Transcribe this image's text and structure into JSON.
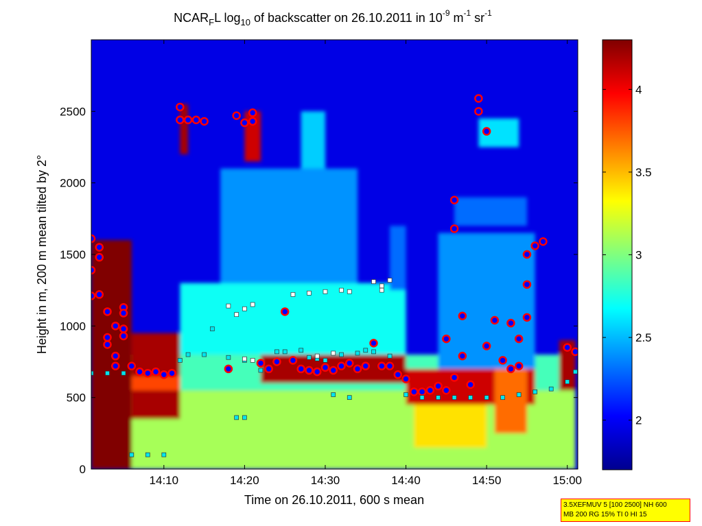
{
  "title": {
    "prefix": "NCAR",
    "sub_f": "F",
    "mid1": "L log",
    "sub_10": "10",
    "mid2": " of backscatter on 26.10.2011 in 10",
    "sup_exp": "-9",
    "unit_m": " m",
    "sup_m": "-1",
    "unit_sr": " sr",
    "sup_sr": "-1"
  },
  "info_box": {
    "line1": "3.5XEFMUV 5 [100 2500] NH 600",
    "line2": "MB 200 RG 15% TI 0 HI 15"
  },
  "colors": {
    "accent_box_fill": "#ffff00",
    "accent_box_border": "#ff0000",
    "marker_fill_blue": "#0000ff",
    "marker_edge_red": "#ff0000",
    "marker_cyan": "#00e5ee",
    "colormap": "jet"
  },
  "chart_data": {
    "type": "heatmap",
    "colormap": "jet",
    "xlabel": "Time on 26.10.2011, 600 s mean",
    "ylabel": "Height in m, 200 m mean tilted by 2°",
    "x_ticks": [
      "14:10",
      "14:20",
      "14:30",
      "14:40",
      "14:50",
      "15:00"
    ],
    "y_ticks": [
      "0",
      "500",
      "1000",
      "1500",
      "2000",
      "2500"
    ],
    "ylim": [
      0,
      3000
    ],
    "colorbar_ticks": [
      "2",
      "2.5",
      "3",
      "3.5",
      "4"
    ],
    "colorbar_range": [
      1.7,
      4.3
    ],
    "grid": false,
    "background_value": 1.95,
    "regions": [
      {
        "t0": "14:01",
        "t1": "15:01",
        "z0": 0,
        "z1": 550,
        "value": 3.1
      },
      {
        "t0": "14:01",
        "t1": "15:01",
        "z0": 550,
        "z1": 800,
        "value": 2.85
      },
      {
        "t0": "14:12",
        "t1": "14:40",
        "z0": 800,
        "z1": 1300,
        "value": 2.7
      },
      {
        "t0": "14:17",
        "t1": "14:34",
        "z0": 1300,
        "z1": 2100,
        "value": 2.4
      },
      {
        "t0": "14:27",
        "t1": "14:30",
        "z0": 2100,
        "z1": 2500,
        "value": 2.55
      },
      {
        "t0": "14:38",
        "t1": "14:40",
        "z0": 1250,
        "z1": 1700,
        "value": 2.3
      },
      {
        "t0": "14:44",
        "t1": "14:56",
        "z0": 650,
        "z1": 1650,
        "value": 2.4
      },
      {
        "t0": "14:46",
        "t1": "14:55",
        "z0": 1700,
        "z1": 1900,
        "value": 2.3
      },
      {
        "t0": "14:41",
        "t1": "14:50",
        "z0": 150,
        "z1": 500,
        "value": 3.4
      },
      {
        "t0": "14:49",
        "t1": "14:54",
        "z0": 2250,
        "z1": 2450,
        "value": 2.6
      },
      {
        "t0": "14:01",
        "t1": "14:06",
        "z0": 0,
        "z1": 1600,
        "value": 4.3
      },
      {
        "t0": "14:06",
        "t1": "14:12",
        "z0": 350,
        "z1": 950,
        "value": 4.2
      },
      {
        "t0": "14:06",
        "t1": "14:12",
        "z0": 550,
        "z1": 650,
        "value": 3.8
      },
      {
        "t0": "14:12",
        "t1": "14:13",
        "z0": 2200,
        "z1": 2550,
        "value": 4.2
      },
      {
        "t0": "14:20",
        "t1": "14:22",
        "z0": 2150,
        "z1": 2500,
        "value": 4.1
      },
      {
        "t0": "14:22",
        "t1": "14:40",
        "z0": 600,
        "z1": 800,
        "value": 4.2
      },
      {
        "t0": "14:40",
        "t1": "14:56",
        "z0": 450,
        "z1": 700,
        "value": 4.1
      },
      {
        "t0": "14:51",
        "t1": "14:55",
        "z0": 250,
        "z1": 700,
        "value": 3.7
      },
      {
        "t0": "14:59",
        "t1": "15:01",
        "z0": 550,
        "z1": 900,
        "value": 4.2
      }
    ],
    "series": [
      {
        "marker": "circle-blue-red-edge",
        "points": [
          [
            "14:01",
            1210
          ],
          [
            "14:01",
            1390
          ],
          [
            "14:01",
            1610
          ],
          [
            "14:02",
            1480
          ],
          [
            "14:02",
            1550
          ],
          [
            "14:02",
            1220
          ],
          [
            "14:03",
            870
          ],
          [
            "14:03",
            920
          ],
          [
            "14:03",
            1100
          ],
          [
            "14:04",
            1000
          ],
          [
            "14:04",
            790
          ],
          [
            "14:04",
            720
          ],
          [
            "14:05",
            1130
          ],
          [
            "14:05",
            1090
          ],
          [
            "14:05",
            980
          ],
          [
            "14:05",
            930
          ],
          [
            "14:06",
            720
          ],
          [
            "14:07",
            680
          ],
          [
            "14:08",
            670
          ],
          [
            "14:09",
            680
          ],
          [
            "14:10",
            660
          ],
          [
            "14:11",
            670
          ],
          [
            "14:12",
            2530
          ],
          [
            "14:12",
            2440
          ],
          [
            "14:13",
            2440
          ],
          [
            "14:14",
            2440
          ],
          [
            "14:15",
            2430
          ],
          [
            "14:18",
            700
          ],
          [
            "14:19",
            2470
          ],
          [
            "14:20",
            2420
          ],
          [
            "14:21",
            2430
          ],
          [
            "14:21",
            2490
          ],
          [
            "14:22",
            740
          ],
          [
            "14:23",
            700
          ],
          [
            "14:24",
            750
          ],
          [
            "14:25",
            1100
          ],
          [
            "14:26",
            760
          ],
          [
            "14:27",
            700
          ],
          [
            "14:28",
            690
          ],
          [
            "14:29",
            680
          ],
          [
            "14:30",
            710
          ],
          [
            "14:31",
            690
          ],
          [
            "14:32",
            720
          ],
          [
            "14:33",
            740
          ],
          [
            "14:34",
            700
          ],
          [
            "14:35",
            720
          ],
          [
            "14:36",
            880
          ],
          [
            "14:37",
            720
          ],
          [
            "14:38",
            720
          ],
          [
            "14:39",
            660
          ],
          [
            "14:40",
            630
          ],
          [
            "14:41",
            540
          ],
          [
            "14:42",
            540
          ],
          [
            "14:43",
            550
          ],
          [
            "14:44",
            580
          ],
          [
            "14:45",
            550
          ],
          [
            "14:45",
            910
          ],
          [
            "14:46",
            1880
          ],
          [
            "14:46",
            1680
          ],
          [
            "14:46",
            640
          ],
          [
            "14:47",
            1070
          ],
          [
            "14:47",
            790
          ],
          [
            "14:48",
            590
          ],
          [
            "14:49",
            2590
          ],
          [
            "14:49",
            2500
          ],
          [
            "14:50",
            2360
          ],
          [
            "14:50",
            860
          ],
          [
            "14:51",
            1040
          ],
          [
            "14:52",
            760
          ],
          [
            "14:53",
            700
          ],
          [
            "14:53",
            1020
          ],
          [
            "14:54",
            720
          ],
          [
            "14:54",
            910
          ],
          [
            "14:55",
            1290
          ],
          [
            "14:55",
            1060
          ],
          [
            "14:55",
            1500
          ],
          [
            "14:56",
            1560
          ],
          [
            "14:57",
            1590
          ],
          [
            "15:00",
            850
          ],
          [
            "15:01",
            820
          ]
        ]
      },
      {
        "marker": "square-cyan",
        "points": [
          [
            "14:01",
            670
          ],
          [
            "14:03",
            670
          ],
          [
            "14:05",
            670
          ],
          [
            "14:06",
            100
          ],
          [
            "14:08",
            100
          ],
          [
            "14:10",
            100
          ],
          [
            "14:12",
            760
          ],
          [
            "14:13",
            800
          ],
          [
            "14:15",
            800
          ],
          [
            "14:16",
            980
          ],
          [
            "14:18",
            780
          ],
          [
            "14:19",
            360
          ],
          [
            "14:20",
            360
          ],
          [
            "14:20",
            760
          ],
          [
            "14:22",
            690
          ],
          [
            "14:24",
            820
          ],
          [
            "14:25",
            820
          ],
          [
            "14:27",
            830
          ],
          [
            "14:28",
            780
          ],
          [
            "14:29",
            770
          ],
          [
            "14:30",
            760
          ],
          [
            "14:31",
            520
          ],
          [
            "14:32",
            800
          ],
          [
            "14:33",
            500
          ],
          [
            "14:34",
            810
          ],
          [
            "14:35",
            830
          ],
          [
            "14:36",
            820
          ],
          [
            "14:38",
            790
          ],
          [
            "14:40",
            520
          ],
          [
            "14:42",
            500
          ],
          [
            "14:44",
            500
          ],
          [
            "14:46",
            500
          ],
          [
            "14:48",
            500
          ],
          [
            "14:50",
            500
          ],
          [
            "14:52",
            500
          ],
          [
            "14:54",
            520
          ],
          [
            "14:56",
            540
          ],
          [
            "14:58",
            560
          ],
          [
            "15:00",
            610
          ],
          [
            "15:01",
            680
          ]
        ]
      },
      {
        "marker": "square-white",
        "points": [
          [
            "14:18",
            1140
          ],
          [
            "14:19",
            1080
          ],
          [
            "14:20",
            1120
          ],
          [
            "14:21",
            1150
          ],
          [
            "14:26",
            1220
          ],
          [
            "14:28",
            1230
          ],
          [
            "14:30",
            1240
          ],
          [
            "14:32",
            1250
          ],
          [
            "14:33",
            1240
          ],
          [
            "14:36",
            1310
          ],
          [
            "14:37",
            1280
          ],
          [
            "14:37",
            1250
          ],
          [
            "14:38",
            1320
          ],
          [
            "14:20",
            770
          ],
          [
            "14:21",
            760
          ],
          [
            "14:29",
            790
          ],
          [
            "14:31",
            810
          ]
        ]
      }
    ]
  }
}
